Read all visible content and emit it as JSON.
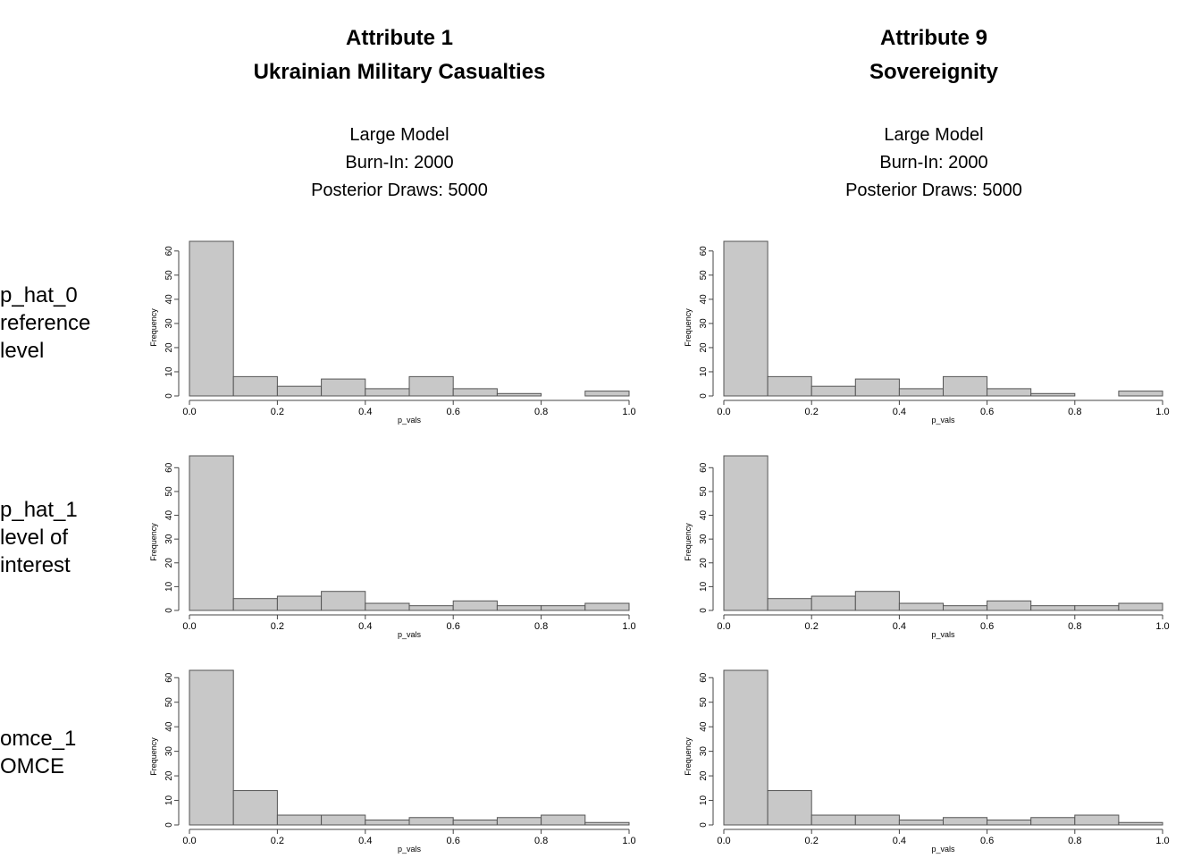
{
  "columns": [
    {
      "title": [
        "Attribute 1",
        "Ukrainian Military Casualties"
      ],
      "subtitle": [
        "Large Model",
        "Burn-In: 2000",
        "Posterior Draws: 5000"
      ]
    },
    {
      "title": [
        "Attribute 9",
        "Sovereignity"
      ],
      "subtitle": [
        "Large Model",
        "Burn-In: 2000",
        "Posterior Draws: 5000"
      ]
    }
  ],
  "rows": [
    [
      "p_hat_0",
      "reference",
      "level"
    ],
    [
      "p_hat_1",
      "level of",
      "interest"
    ],
    [
      "omce_1",
      "OMCE"
    ]
  ],
  "chart_data": [
    {
      "type": "histogram",
      "xlabel": "p_vals",
      "ylabel": "Frequency",
      "color": "#c8c8c8",
      "bins": [
        0,
        0.1,
        0.2,
        0.3,
        0.4,
        0.5,
        0.6,
        0.7,
        0.8,
        0.9,
        1
      ],
      "values": [
        64,
        8,
        4,
        7,
        3,
        8,
        3,
        1,
        0,
        2
      ],
      "xlim": [
        0,
        1
      ],
      "ylim": [
        0,
        64
      ],
      "xticks": [
        {
          "value": 0,
          "label": "0.0"
        },
        0.2,
        0.4,
        0.6,
        0.8,
        {
          "value": 1,
          "label": "1.0"
        }
      ],
      "yticks": [
        0,
        10,
        20,
        30,
        40,
        50,
        60
      ]
    },
    {
      "type": "histogram",
      "xlabel": "p_vals",
      "ylabel": "Frequency",
      "color": "#c8c8c8",
      "bins": [
        0,
        0.1,
        0.2,
        0.3,
        0.4,
        0.5,
        0.6,
        0.7,
        0.8,
        0.9,
        1
      ],
      "values": [
        64,
        8,
        4,
        7,
        3,
        8,
        3,
        1,
        0,
        2
      ],
      "xlim": [
        0,
        1
      ],
      "ylim": [
        0,
        64
      ],
      "xticks": [
        {
          "value": 0,
          "label": "0.0"
        },
        0.2,
        0.4,
        0.6,
        0.8,
        {
          "value": 1,
          "label": "1.0"
        }
      ],
      "yticks": [
        0,
        10,
        20,
        30,
        40,
        50,
        60
      ]
    },
    {
      "type": "histogram",
      "xlabel": "p_vals",
      "ylabel": "Frequency",
      "color": "#c8c8c8",
      "bins": [
        0,
        0.1,
        0.2,
        0.3,
        0.4,
        0.5,
        0.6,
        0.7,
        0.8,
        0.9,
        1
      ],
      "values": [
        65,
        5,
        6,
        8,
        3,
        2,
        4,
        2,
        2,
        3
      ],
      "xlim": [
        0,
        1
      ],
      "ylim": [
        0,
        65
      ],
      "xticks": [
        {
          "value": 0,
          "label": "0.0"
        },
        0.2,
        0.4,
        0.6,
        0.8,
        {
          "value": 1,
          "label": "1.0"
        }
      ],
      "yticks": [
        0,
        10,
        20,
        30,
        40,
        50,
        60
      ]
    },
    {
      "type": "histogram",
      "xlabel": "p_vals",
      "ylabel": "Frequency",
      "color": "#c8c8c8",
      "bins": [
        0,
        0.1,
        0.2,
        0.3,
        0.4,
        0.5,
        0.6,
        0.7,
        0.8,
        0.9,
        1
      ],
      "values": [
        65,
        5,
        6,
        8,
        3,
        2,
        4,
        2,
        2,
        3
      ],
      "xlim": [
        0,
        1
      ],
      "ylim": [
        0,
        65
      ],
      "xticks": [
        {
          "value": 0,
          "label": "0.0"
        },
        0.2,
        0.4,
        0.6,
        0.8,
        {
          "value": 1,
          "label": "1.0"
        }
      ],
      "yticks": [
        0,
        10,
        20,
        30,
        40,
        50,
        60
      ]
    },
    {
      "type": "histogram",
      "xlabel": "p_vals",
      "ylabel": "Frequency",
      "color": "#c8c8c8",
      "bins": [
        0,
        0.1,
        0.2,
        0.3,
        0.4,
        0.5,
        0.6,
        0.7,
        0.8,
        0.9,
        1
      ],
      "values": [
        63,
        14,
        4,
        4,
        2,
        3,
        2,
        3,
        4,
        1
      ],
      "xlim": [
        0,
        1
      ],
      "ylim": [
        0,
        63
      ],
      "xticks": [
        {
          "value": 0,
          "label": "0.0"
        },
        0.2,
        0.4,
        0.6,
        0.8,
        {
          "value": 1,
          "label": "1.0"
        }
      ],
      "yticks": [
        0,
        10,
        20,
        30,
        40,
        50,
        60
      ]
    },
    {
      "type": "histogram",
      "xlabel": "p_vals",
      "ylabel": "Frequency",
      "color": "#c8c8c8",
      "bins": [
        0,
        0.1,
        0.2,
        0.3,
        0.4,
        0.5,
        0.6,
        0.7,
        0.8,
        0.9,
        1
      ],
      "values": [
        63,
        14,
        4,
        4,
        2,
        3,
        2,
        3,
        4,
        1
      ],
      "xlim": [
        0,
        1
      ],
      "ylim": [
        0,
        63
      ],
      "xticks": [
        {
          "value": 0,
          "label": "0.0"
        },
        0.2,
        0.4,
        0.6,
        0.8,
        {
          "value": 1,
          "label": "1.0"
        }
      ],
      "yticks": [
        0,
        10,
        20,
        30,
        40,
        50,
        60
      ]
    }
  ]
}
